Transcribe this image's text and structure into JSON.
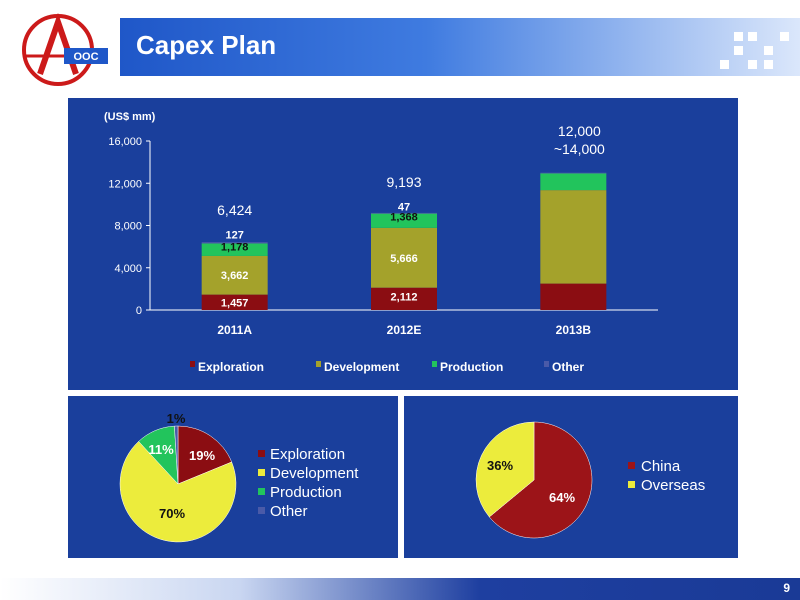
{
  "slide": {
    "title": "Capex Plan",
    "page_number": "9"
  },
  "colors": {
    "exploration": "#8b0d12",
    "development": "#a4a22b",
    "production": "#22c45c",
    "other": "#4a5aa8",
    "china": "#9c1418",
    "overseas": "#ecec3c",
    "panel": "#1a3f9c"
  },
  "chart_data": [
    {
      "type": "bar",
      "stacked": true,
      "ylabel": "(US$ mm)",
      "ylim": [
        0,
        16000
      ],
      "yticks": [
        "0",
        "4,000",
        "8,000",
        "12,000",
        "16,000"
      ],
      "categories": [
        "2011A",
        "2012E",
        "2013B"
      ],
      "series": [
        {
          "name": "Exploration",
          "values": [
            1457,
            2112,
            2500
          ],
          "labels": [
            "1,457",
            "2,112",
            ""
          ]
        },
        {
          "name": "Development",
          "values": [
            3662,
            5666,
            8850
          ],
          "labels": [
            "3,662",
            "5,666",
            ""
          ]
        },
        {
          "name": "Production",
          "values": [
            1178,
            1368,
            1600
          ],
          "labels": [
            "1,178",
            "1,368",
            ""
          ]
        },
        {
          "name": "Other",
          "values": [
            127,
            47,
            50
          ],
          "labels": [
            "127",
            "47",
            ""
          ]
        }
      ],
      "totals": [
        "6,424",
        "9,193",
        "12,000\n~14,000"
      ],
      "legend_position": "bottom"
    },
    {
      "type": "pie",
      "slices": [
        {
          "name": "Exploration",
          "value": 19,
          "label": "19%"
        },
        {
          "name": "Development",
          "value": 70,
          "label": "70%"
        },
        {
          "name": "Production",
          "value": 11,
          "label": "11%"
        },
        {
          "name": "Other",
          "value": 1,
          "label": "1%"
        }
      ],
      "legend_position": "right"
    },
    {
      "type": "pie",
      "slices": [
        {
          "name": "China",
          "value": 64,
          "label": "64%"
        },
        {
          "name": "Overseas",
          "value": 36,
          "label": "36%"
        }
      ],
      "legend_position": "right"
    }
  ]
}
